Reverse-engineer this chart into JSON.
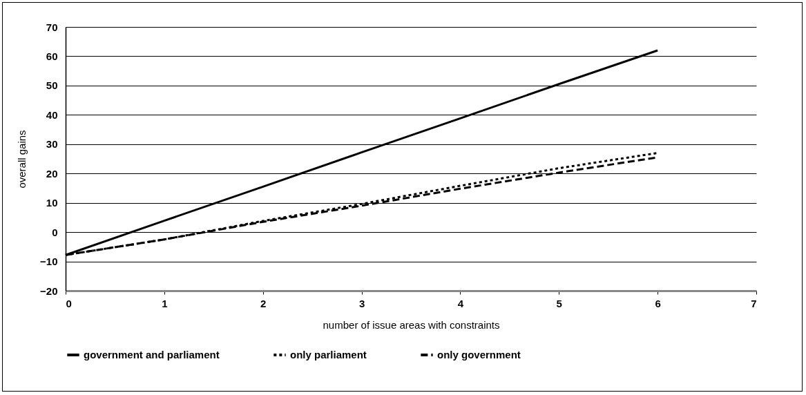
{
  "chart_data": {
    "type": "line",
    "xlabel": "number of issue areas with constraints",
    "ylabel": "overall gains",
    "x": [
      0,
      1,
      2,
      3,
      4,
      5,
      6
    ],
    "xlim": [
      0,
      7
    ],
    "xticks": [
      0,
      1,
      2,
      3,
      4,
      5,
      6,
      7
    ],
    "ylim": [
      -20,
      70
    ],
    "yticks": [
      -20,
      -10,
      0,
      10,
      20,
      30,
      40,
      50,
      60,
      70
    ],
    "grid": "y",
    "legend": "bottom",
    "marker": "none",
    "series": [
      {
        "name": "government and parliament",
        "color": "#000000",
        "line_style": "solid",
        "values": [
          -7.8,
          3.9,
          15.5,
          27.2,
          38.8,
          50.5,
          62
        ]
      },
      {
        "name": "only parliament",
        "color": "#000000",
        "line_style": "dotted",
        "values": [
          -7.8,
          -2.5,
          3.8,
          9.6,
          15.8,
          21.8,
          27
        ]
      },
      {
        "name": "only government",
        "color": "#000000",
        "line_style": "dashed",
        "values": [
          -7.8,
          -2.5,
          3.5,
          9,
          14.8,
          20.3,
          25.5
        ]
      }
    ]
  }
}
